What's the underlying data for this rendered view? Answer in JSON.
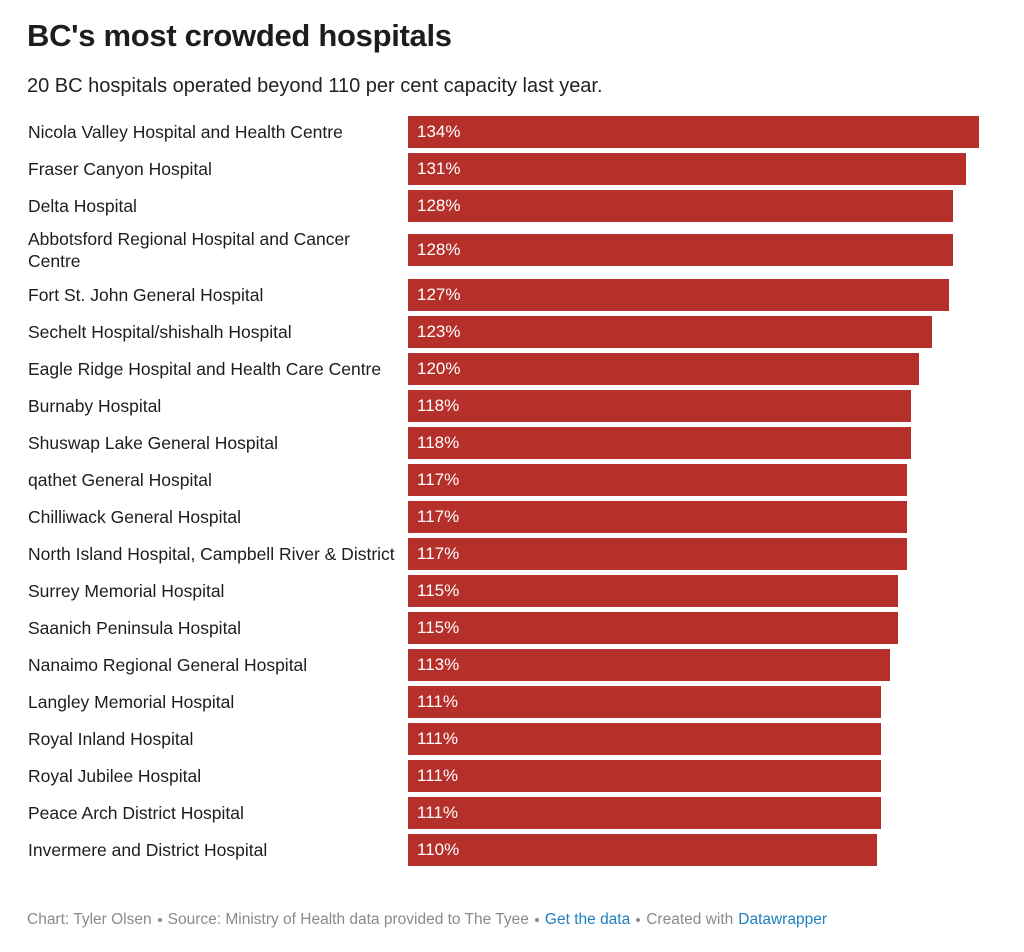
{
  "chart_data": {
    "type": "bar",
    "orientation": "horizontal",
    "title": "BC's most crowded hospitals",
    "subtitle": "20 BC hospitals operated beyond 110 per cent capacity last year.",
    "color": "#b5302a",
    "categories": [
      "Nicola Valley Hospital and Health Centre",
      "Fraser Canyon Hospital",
      "Delta Hospital",
      "Abbotsford Regional Hospital and Cancer Centre",
      "Fort St. John General Hospital",
      "Sechelt Hospital/shishalh Hospital",
      "Eagle Ridge Hospital and Health Care Centre",
      "Burnaby Hospital",
      "Shuswap Lake General Hospital",
      "qathet General Hospital",
      "Chilliwack General Hospital",
      "North Island Hospital, Campbell River & District",
      "Surrey Memorial Hospital",
      "Saanich Peninsula Hospital",
      "Nanaimo Regional General Hospital",
      "Langley Memorial Hospital",
      "Royal Inland Hospital",
      "Royal Jubilee Hospital",
      "Peace Arch District Hospital",
      "Invermere and District Hospital"
    ],
    "values": [
      134,
      131,
      128,
      128,
      127,
      123,
      120,
      118,
      118,
      117,
      117,
      117,
      115,
      115,
      113,
      111,
      111,
      111,
      111,
      110
    ],
    "value_labels": [
      "134%",
      "131%",
      "128%",
      "128%",
      "127%",
      "123%",
      "120%",
      "118%",
      "118%",
      "117%",
      "117%",
      "117%",
      "115%",
      "115%",
      "113%",
      "111%",
      "111%",
      "111%",
      "111%",
      "110%"
    ],
    "footer": [
      "Chart: Tyler Olsen",
      "Source: Ministry of Health data provided to The Tyee",
      "Get the data",
      "Created with"
    ],
    "footer_link": "Datawrapper"
  }
}
